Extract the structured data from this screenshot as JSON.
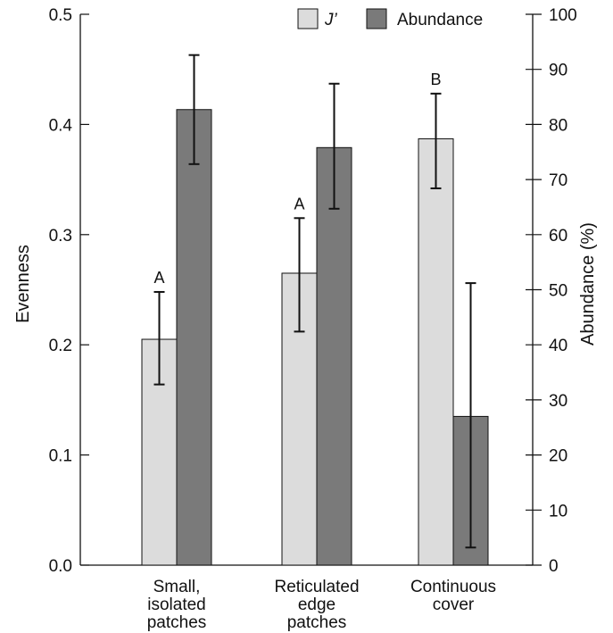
{
  "chart_data": {
    "type": "bar",
    "categories": [
      [
        "Small,",
        "isolated",
        "patches"
      ],
      [
        "Reticulated",
        "edge",
        "patches"
      ],
      [
        "Continuous",
        "cover"
      ]
    ],
    "series": [
      {
        "name": "J’",
        "axis": "left",
        "color": "#dcdcdc",
        "values": [
          0.205,
          0.265,
          0.387
        ],
        "error_low": [
          0.164,
          0.212,
          0.342
        ],
        "error_high": [
          0.248,
          0.315,
          0.428
        ],
        "significance_letters": [
          "A",
          "A",
          "B"
        ]
      },
      {
        "name": "Abundance",
        "axis": "right",
        "color": "#7a7a7a",
        "values": [
          82.7,
          75.8,
          27.0
        ],
        "error_low": [
          72.8,
          64.7,
          3.2
        ],
        "error_high": [
          92.6,
          87.4,
          51.2
        ]
      }
    ],
    "left_axis": {
      "label": "Evenness",
      "lim": [
        0,
        0.5
      ],
      "ticks": [
        "0.0",
        "0.1",
        "0.2",
        "0.3",
        "0.4",
        "0.5"
      ]
    },
    "right_axis": {
      "label": "Abundance (%)",
      "lim": [
        0,
        100
      ],
      "ticks": [
        "0",
        "10",
        "20",
        "30",
        "40",
        "50",
        "60",
        "70",
        "80",
        "90",
        "100"
      ]
    },
    "legend": {
      "position": "top-right"
    },
    "grid": false
  }
}
